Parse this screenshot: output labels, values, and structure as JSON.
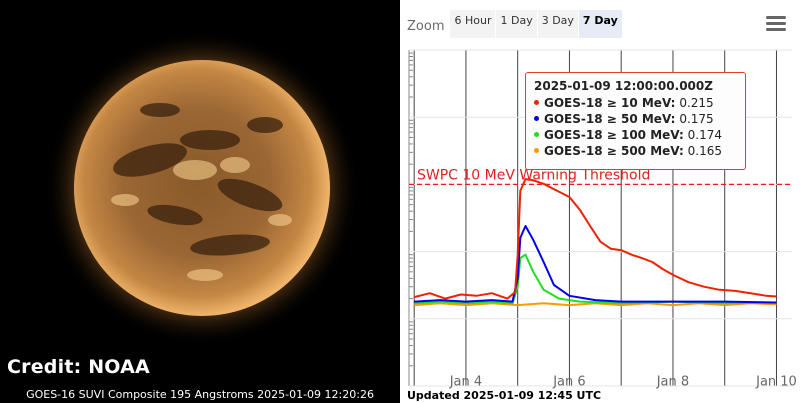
{
  "solar_image": {
    "credit": "Credit: NOAA",
    "caption": "GOES-16 SUVI Composite 195 Angstroms 2025-01-09 12:20:26"
  },
  "zoom": {
    "label": "Zoom",
    "buttons": [
      "6 Hour",
      "1 Day",
      "3 Day",
      "7 Day"
    ],
    "active": "7 Day"
  },
  "menu_icon": "hamburger-menu-icon",
  "tooltip": {
    "title": "2025-01-09 12:00:00.000Z",
    "rows": [
      {
        "name": "GOES-18 ≥ 10 MeV:",
        "value": "0.215",
        "color": "#ee2200"
      },
      {
        "name": "GOES-18 ≥ 50 MeV:",
        "value": "0.175",
        "color": "#0000ee"
      },
      {
        "name": "GOES-18 ≥ 100 MeV:",
        "value": "0.174",
        "color": "#22dd22"
      },
      {
        "name": "GOES-18 ≥ 500 MeV:",
        "value": "0.165",
        "color": "#ff9900"
      }
    ]
  },
  "updated": "Updated 2025-01-09 12:45 UTC",
  "chart_data": {
    "type": "line",
    "title": "",
    "xlabel": "",
    "ylabel": "",
    "x_ticks": [
      "Jan 4",
      "Jan 6",
      "Jan 8",
      "Jan 10"
    ],
    "x_tick_days": [
      4,
      6,
      8,
      10
    ],
    "xlim_days": [
      2.9,
      10.3
    ],
    "y_scale": "log",
    "ylim": [
      0.01,
      1000
    ],
    "grid": true,
    "threshold": {
      "label": "SWPC 10 MeV Warning Threshold",
      "value": 10,
      "color": "#dd2222"
    },
    "series": [
      {
        "name": "GOES-18 ≥ 10 MeV",
        "color": "#ee2200",
        "x": [
          3.0,
          3.3,
          3.6,
          3.9,
          4.2,
          4.5,
          4.8,
          4.95,
          5.0,
          5.05,
          5.15,
          5.3,
          5.5,
          5.7,
          6.0,
          6.2,
          6.4,
          6.6,
          6.8,
          7.0,
          7.2,
          7.4,
          7.6,
          7.8,
          8.0,
          8.3,
          8.6,
          8.9,
          9.2,
          9.5,
          9.8,
          10.0
        ],
        "y": [
          0.21,
          0.24,
          0.2,
          0.23,
          0.22,
          0.24,
          0.2,
          0.25,
          0.9,
          8.0,
          12.0,
          11.5,
          10.2,
          8.5,
          6.5,
          4.2,
          2.4,
          1.4,
          1.1,
          1.05,
          0.9,
          0.8,
          0.7,
          0.55,
          0.45,
          0.35,
          0.3,
          0.27,
          0.26,
          0.24,
          0.22,
          0.215
        ]
      },
      {
        "name": "GOES-18 ≥ 50 MeV",
        "color": "#0000ee",
        "x": [
          3.0,
          3.5,
          4.0,
          4.5,
          4.9,
          5.0,
          5.05,
          5.15,
          5.3,
          5.5,
          5.7,
          6.0,
          6.5,
          7.0,
          8.0,
          9.0,
          10.0
        ],
        "y": [
          0.18,
          0.19,
          0.18,
          0.19,
          0.18,
          0.4,
          1.6,
          2.4,
          1.5,
          0.7,
          0.32,
          0.22,
          0.19,
          0.18,
          0.18,
          0.18,
          0.175
        ]
      },
      {
        "name": "GOES-18 ≥ 100 MeV",
        "color": "#22dd22",
        "x": [
          3.0,
          3.5,
          4.0,
          4.5,
          4.9,
          5.0,
          5.05,
          5.15,
          5.3,
          5.5,
          5.8,
          6.2,
          7.0,
          8.0,
          9.0,
          10.0
        ],
        "y": [
          0.17,
          0.18,
          0.17,
          0.18,
          0.17,
          0.3,
          0.8,
          0.9,
          0.5,
          0.27,
          0.2,
          0.18,
          0.17,
          0.18,
          0.17,
          0.174
        ]
      },
      {
        "name": "GOES-18 ≥ 500 MeV",
        "color": "#ff9900",
        "x": [
          3.0,
          3.5,
          4.0,
          4.5,
          5.0,
          5.5,
          6.0,
          6.5,
          7.0,
          7.5,
          8.0,
          8.5,
          9.0,
          9.5,
          10.0
        ],
        "y": [
          0.16,
          0.17,
          0.16,
          0.17,
          0.16,
          0.17,
          0.16,
          0.17,
          0.16,
          0.17,
          0.16,
          0.17,
          0.16,
          0.17,
          0.165
        ]
      }
    ]
  }
}
